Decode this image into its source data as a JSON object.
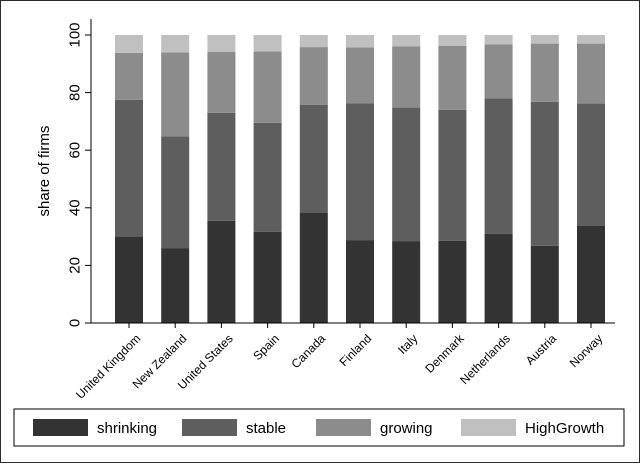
{
  "chart_data": {
    "type": "bar",
    "stacked": true,
    "title": "",
    "xlabel": "",
    "ylabel": "share of firms",
    "ylim": [
      0,
      100
    ],
    "yticks": [
      0,
      20,
      40,
      60,
      80,
      100
    ],
    "grid": false,
    "legend_position": "bottom",
    "categories": [
      "United Kingdom",
      "New Zealand",
      "United States",
      "Spain",
      "Canada",
      "Finland",
      "Italy",
      "Denmark",
      "Netherlands",
      "Austria",
      "Norway"
    ],
    "series": [
      {
        "name": "shrinking",
        "color": "#333333",
        "values": [
          30,
          26,
          35.5,
          31.7,
          38.2,
          28.8,
          28.3,
          28.5,
          31,
          26.8,
          33.7
        ]
      },
      {
        "name": "stable",
        "color": "#5e5e5e",
        "values": [
          47.5,
          38.8,
          37.5,
          37.8,
          37.6,
          47.4,
          46.5,
          45.5,
          47,
          50,
          42.6
        ]
      },
      {
        "name": "growing",
        "color": "#8c8c8c",
        "values": [
          16.3,
          29.2,
          21.1,
          24.8,
          20,
          19.5,
          21.2,
          22.3,
          18.7,
          20.2,
          20.7
        ]
      },
      {
        "name": "HighGrowth",
        "color": "#c0c0c0",
        "values": [
          6.2,
          6,
          5.9,
          5.7,
          4.2,
          4.3,
          4,
          3.7,
          3.3,
          3,
          3
        ]
      }
    ]
  }
}
